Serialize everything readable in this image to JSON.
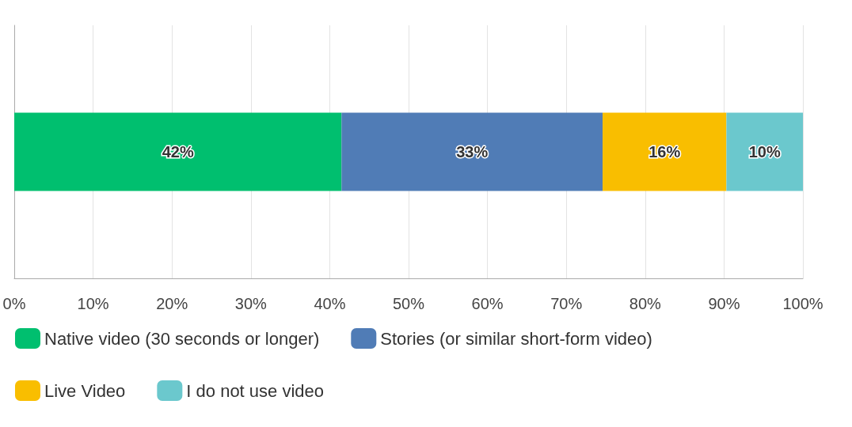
{
  "chart_data": {
    "type": "bar",
    "orientation": "horizontal",
    "stacked": true,
    "categories": [
      null
    ],
    "series": [
      {
        "name": "Native video (30 seconds or longer)",
        "color": "#00bf6f",
        "values": [
          41.5
        ],
        "value_labels": [
          "42%"
        ]
      },
      {
        "name": "Stories (or similar short-form video)",
        "color": "#507cb6",
        "values": [
          33.1
        ],
        "value_labels": [
          "33%"
        ]
      },
      {
        "name": "Live Video",
        "color": "#f9be00",
        "values": [
          15.7
        ],
        "value_labels": [
          "16%"
        ]
      },
      {
        "name": "I do not use video",
        "color": "#6bc8cd",
        "values": [
          9.7
        ],
        "value_labels": [
          "10%"
        ]
      }
    ],
    "xlim": [
      0,
      100
    ],
    "xticks": [
      {
        "value": 0,
        "label": "0%"
      },
      {
        "value": 10,
        "label": "10%"
      },
      {
        "value": 20,
        "label": "20%"
      },
      {
        "value": 30,
        "label": "30%"
      },
      {
        "value": 40,
        "label": "40%"
      },
      {
        "value": 50,
        "label": "50%"
      },
      {
        "value": 60,
        "label": "60%"
      },
      {
        "value": 70,
        "label": "70%"
      },
      {
        "value": 80,
        "label": "80%"
      },
      {
        "value": 90,
        "label": "90%"
      },
      {
        "value": 100,
        "label": "100%"
      }
    ],
    "grid": "x",
    "legend": "bottom left",
    "tick_labels": "x"
  }
}
